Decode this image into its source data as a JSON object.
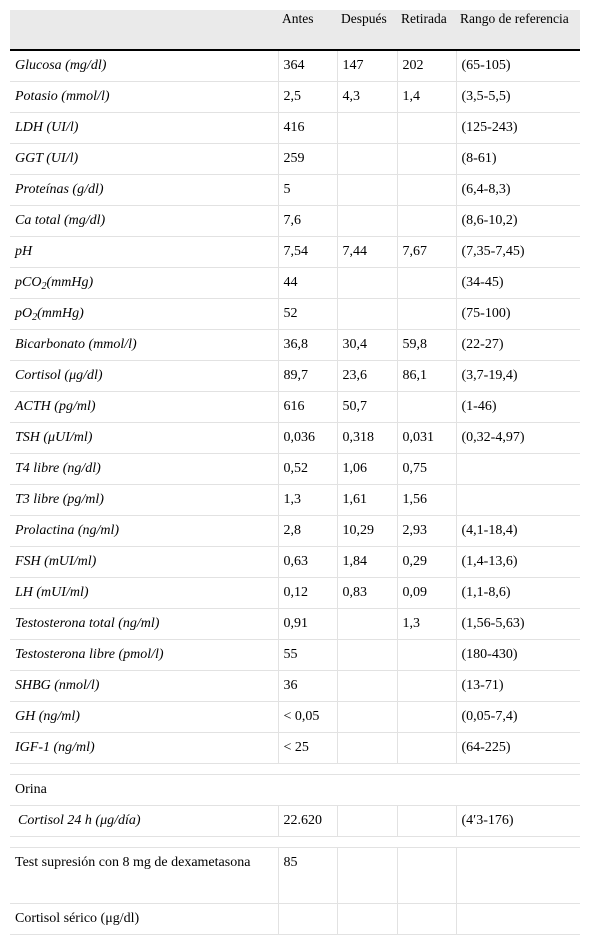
{
  "header": {
    "col0": "",
    "col1": "Antes",
    "col2": "Después",
    "col3": "Retirada",
    "col4": "Rango de referencia"
  },
  "rows": [
    {
      "name": "Glucosa (mg/dl)",
      "antes": "364",
      "despues": "147",
      "retirada": "202",
      "rango": "(65-105)"
    },
    {
      "name": "Potasio (mmol/l)",
      "antes": "2,5",
      "despues": "4,3",
      "retirada": "1,4",
      "rango": "(3,5-5,5)"
    },
    {
      "name": "LDH (UI/l)",
      "antes": "416",
      "despues": "",
      "retirada": "",
      "rango": "(125-243)"
    },
    {
      "name": "GGT (UI/l)",
      "antes": "259",
      "despues": "",
      "retirada": "",
      "rango": "(8-61)"
    },
    {
      "name": "Proteínas (g/dl)",
      "antes": "5",
      "despues": "",
      "retirada": "",
      "rango": "(6,4-8,3)"
    },
    {
      "name": "Ca total (mg/dl)",
      "antes": "7,6",
      "despues": "",
      "retirada": "",
      "rango": "(8,6-10,2)"
    },
    {
      "name": "pH",
      "antes": "7,54",
      "despues": "7,44",
      "retirada": "7,67",
      "rango": "(7,35-7,45)"
    },
    {
      "name_pre": "pCO",
      "name_sub": "2",
      "name_post": "(mmHg)",
      "antes": "44",
      "despues": "",
      "retirada": "",
      "rango": "(34-45)"
    },
    {
      "name_pre": "pO",
      "name_sub": "2",
      "name_post": "(mmHg)",
      "antes": "52",
      "despues": "",
      "retirada": "",
      "rango": "(75-100)"
    },
    {
      "name": "Bicarbonato (mmol/l)",
      "antes": "36,8",
      "despues": "30,4",
      "retirada": "59,8",
      "rango": "(22-27)"
    },
    {
      "name": "Cortisol (μg/dl)",
      "antes": "89,7",
      "despues": "23,6",
      "retirada": "86,1",
      "rango": "(3,7-19,4)"
    },
    {
      "name": "ACTH (pg/ml)",
      "antes": "616",
      "despues": "50,7",
      "retirada": "",
      "rango": "(1-46)"
    },
    {
      "name": "TSH (μUI/ml)",
      "antes": "0,036",
      "despues": "0,318",
      "retirada": "0,031",
      "rango": "(0,32-4,97)"
    },
    {
      "name": "T4 libre (ng/dl)",
      "antes": "0,52",
      "despues": "1,06",
      "retirada": "0,75",
      "rango": ""
    },
    {
      "name": "T3 libre (pg/ml)",
      "antes": "1,3",
      "despues": "1,61",
      "retirada": "1,56",
      "rango": ""
    },
    {
      "name": "Prolactina (ng/ml)",
      "antes": "2,8",
      "despues": "10,29",
      "retirada": "2,93",
      "rango": "(4,1-18,4)"
    },
    {
      "name": "FSH (mUI/ml)",
      "antes": "0,63",
      "despues": "1,84",
      "retirada": "0,29",
      "rango": "(1,4-13,6)"
    },
    {
      "name": "LH (mUI/ml)",
      "antes": "0,12",
      "despues": "0,83",
      "retirada": "0,09",
      "rango": "(1,1-8,6)"
    },
    {
      "name": "Testosterona total (ng/ml)",
      "antes": "0,91",
      "despues": "",
      "retirada": "1,3",
      "rango": "(1,56-5,63)"
    },
    {
      "name": "Testosterona libre (pmol/l)",
      "antes": "55",
      "despues": "",
      "retirada": "",
      "rango": "(180-430)"
    },
    {
      "name": "SHBG (nmol/l)",
      "antes": "36",
      "despues": "",
      "retirada": "",
      "rango": "(13-71)"
    },
    {
      "name": "GH (ng/ml)",
      "antes": "< 0,05",
      "despues": "",
      "retirada": "",
      "rango": "(0,05-7,4)"
    },
    {
      "name": "IGF-1 (ng/ml)",
      "antes": "< 25",
      "despues": "",
      "retirada": "",
      "rango": "(64-225)"
    }
  ],
  "orina": {
    "section_label": "Orina",
    "row": {
      "name": "Cortisol 24 h (μg/día)",
      "antes": "22.620",
      "despues": "",
      "retirada": "",
      "rango": "(4′3-176)"
    }
  },
  "test": {
    "row": {
      "name": "Test supresión con 8 mg de dexametasona",
      "antes": "85",
      "despues": "",
      "retirada": "",
      "rango": ""
    },
    "last": {
      "name": "Cortisol sérico (μg/dl)"
    }
  }
}
